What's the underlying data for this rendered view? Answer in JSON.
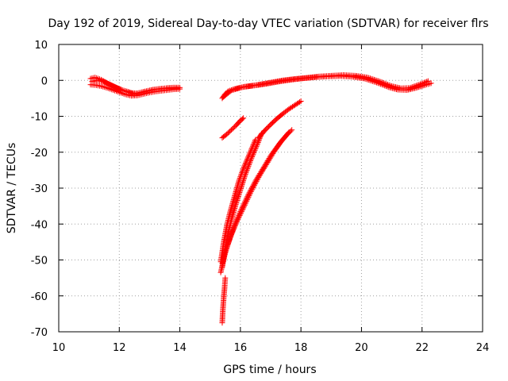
{
  "chart_data": {
    "type": "scatter",
    "title": "Day 192 of 2019, Sidereal Day-to-day VTEC variation (SDTVAR) for receiver flrs",
    "xlabel": "GPS time / hours",
    "ylabel": "SDTVAR / TECUs",
    "xlim": [
      10,
      24
    ],
    "ylim": [
      -70,
      10
    ],
    "xticks": [
      10,
      12,
      14,
      16,
      18,
      20,
      22,
      24
    ],
    "yticks": [
      -70,
      -60,
      -50,
      -40,
      -30,
      -20,
      -10,
      0,
      10
    ],
    "xtick_labels": [
      "10",
      "12",
      "14",
      "16",
      "18",
      "20",
      "22",
      "24"
    ],
    "ytick_labels": [
      "-70",
      "-60",
      "-50",
      "-40",
      "-30",
      "-20",
      "-10",
      "0",
      "10"
    ],
    "grid": true,
    "marker": "+",
    "color": "#ff0000",
    "series": [
      {
        "points": [
          [
            11.05,
            0.5
          ],
          [
            11.2,
            0.8
          ],
          [
            11.4,
            0.2
          ],
          [
            11.6,
            -0.8
          ],
          [
            11.8,
            -1.6
          ],
          [
            12.0,
            -2.4
          ],
          [
            12.2,
            -3.0
          ],
          [
            12.4,
            -3.5
          ],
          [
            12.6,
            -3.6
          ],
          [
            12.8,
            -3.2
          ],
          [
            13.0,
            -2.8
          ],
          [
            13.2,
            -2.5
          ],
          [
            13.4,
            -2.3
          ],
          [
            13.6,
            -2.1
          ],
          [
            13.8,
            -2.0
          ],
          [
            14.0,
            -2.0
          ]
        ]
      },
      {
        "points": [
          [
            11.05,
            -1.2
          ],
          [
            11.2,
            -1.3
          ],
          [
            11.4,
            -1.6
          ],
          [
            11.6,
            -2.1
          ],
          [
            11.8,
            -2.7
          ],
          [
            12.0,
            -3.3
          ],
          [
            12.2,
            -3.9
          ],
          [
            12.4,
            -4.3
          ],
          [
            12.6,
            -4.2
          ],
          [
            12.8,
            -3.8
          ],
          [
            13.0,
            -3.4
          ],
          [
            13.2,
            -3.1
          ],
          [
            13.4,
            -2.9
          ],
          [
            13.6,
            -2.7
          ],
          [
            13.8,
            -2.5
          ],
          [
            14.0,
            -2.4
          ]
        ]
      },
      {
        "points": [
          [
            11.1,
            -0.3
          ],
          [
            11.3,
            0.0
          ],
          [
            11.5,
            -0.4
          ],
          [
            11.7,
            -1.2
          ],
          [
            11.9,
            -2.0
          ],
          [
            12.1,
            -2.7
          ],
          [
            12.3,
            -3.2
          ],
          [
            12.5,
            -3.9
          ],
          [
            12.7,
            -3.4
          ],
          [
            12.9,
            -3.0
          ],
          [
            13.1,
            -2.6
          ],
          [
            13.3,
            -2.4
          ],
          [
            13.5,
            -2.3
          ],
          [
            13.7,
            -2.2
          ],
          [
            13.9,
            -2.2
          ]
        ]
      },
      {
        "points": [
          [
            15.4,
            -5.0
          ],
          [
            15.5,
            -3.8
          ],
          [
            15.6,
            -3.0
          ],
          [
            15.8,
            -2.4
          ],
          [
            16.0,
            -2.0
          ],
          [
            16.3,
            -1.6
          ],
          [
            16.6,
            -1.2
          ],
          [
            17.0,
            -0.6
          ],
          [
            17.4,
            0.0
          ],
          [
            17.8,
            0.4
          ],
          [
            18.2,
            0.7
          ],
          [
            18.6,
            1.1
          ],
          [
            19.0,
            1.3
          ],
          [
            19.4,
            1.5
          ],
          [
            19.8,
            1.3
          ],
          [
            20.2,
            0.8
          ],
          [
            20.6,
            -0.3
          ],
          [
            21.0,
            -1.6
          ],
          [
            21.3,
            -2.2
          ],
          [
            21.6,
            -2.1
          ],
          [
            21.9,
            -1.2
          ],
          [
            22.2,
            -0.2
          ]
        ]
      },
      {
        "points": [
          [
            15.45,
            -4.5
          ],
          [
            15.7,
            -2.8
          ],
          [
            16.1,
            -1.8
          ],
          [
            16.5,
            -1.4
          ],
          [
            16.9,
            -0.9
          ],
          [
            17.3,
            -0.3
          ],
          [
            17.7,
            0.2
          ],
          [
            18.1,
            0.6
          ],
          [
            18.5,
            0.9
          ],
          [
            18.9,
            1.1
          ],
          [
            19.3,
            1.2
          ],
          [
            19.7,
            1.0
          ],
          [
            20.1,
            0.5
          ],
          [
            20.5,
            -0.6
          ],
          [
            20.9,
            -1.9
          ],
          [
            21.2,
            -2.6
          ],
          [
            21.5,
            -2.7
          ],
          [
            21.8,
            -2.1
          ],
          [
            22.1,
            -1.3
          ],
          [
            22.3,
            -0.8
          ]
        ]
      },
      {
        "points": [
          [
            15.4,
            -16.0
          ],
          [
            15.55,
            -15.0
          ],
          [
            15.7,
            -13.8
          ],
          [
            15.85,
            -12.6
          ],
          [
            16.0,
            -11.2
          ],
          [
            16.1,
            -10.5
          ]
        ]
      },
      {
        "points": [
          [
            15.35,
            -50.5
          ],
          [
            15.45,
            -45.0
          ],
          [
            15.55,
            -40.5
          ],
          [
            15.65,
            -37.0
          ],
          [
            15.8,
            -32.5
          ],
          [
            15.95,
            -28.0
          ],
          [
            16.1,
            -24.5
          ],
          [
            16.3,
            -20.5
          ],
          [
            16.5,
            -16.5
          ]
        ]
      },
      {
        "points": [
          [
            15.4,
            -52.0
          ],
          [
            15.5,
            -47.0
          ],
          [
            15.6,
            -42.5
          ],
          [
            15.7,
            -39.0
          ],
          [
            15.85,
            -34.5
          ],
          [
            16.0,
            -30.5
          ],
          [
            16.15,
            -26.5
          ],
          [
            16.35,
            -22.0
          ],
          [
            16.55,
            -18.0
          ],
          [
            16.7,
            -14.8
          ]
        ]
      },
      {
        "points": [
          [
            16.6,
            -16.0
          ],
          [
            16.8,
            -14.0
          ],
          [
            17.0,
            -12.3
          ],
          [
            17.2,
            -10.7
          ],
          [
            17.4,
            -9.3
          ],
          [
            17.6,
            -8.0
          ],
          [
            17.8,
            -6.9
          ],
          [
            18.0,
            -5.8
          ]
        ]
      },
      {
        "points": [
          [
            15.35,
            -53.5
          ],
          [
            15.5,
            -48.0
          ],
          [
            15.65,
            -44.0
          ],
          [
            15.8,
            -40.5
          ],
          [
            16.0,
            -36.5
          ],
          [
            16.25,
            -32.0
          ],
          [
            16.5,
            -28.0
          ],
          [
            16.75,
            -24.5
          ],
          [
            17.0,
            -21.0
          ],
          [
            17.3,
            -17.5
          ],
          [
            17.55,
            -15.0
          ],
          [
            17.7,
            -13.8
          ]
        ]
      },
      {
        "points": [
          [
            15.4,
            -51.0
          ],
          [
            15.55,
            -46.5
          ],
          [
            15.7,
            -43.0
          ],
          [
            15.9,
            -39.0
          ],
          [
            16.1,
            -35.5
          ],
          [
            16.35,
            -31.0
          ],
          [
            16.6,
            -27.0
          ],
          [
            16.85,
            -23.5
          ],
          [
            17.1,
            -20.0
          ],
          [
            17.35,
            -17.0
          ],
          [
            17.6,
            -14.5
          ]
        ]
      },
      {
        "points": [
          [
            15.4,
            -67.5
          ],
          [
            15.42,
            -64.0
          ],
          [
            15.45,
            -60.5
          ],
          [
            15.48,
            -57.5
          ],
          [
            15.5,
            -55.0
          ]
        ]
      }
    ]
  }
}
